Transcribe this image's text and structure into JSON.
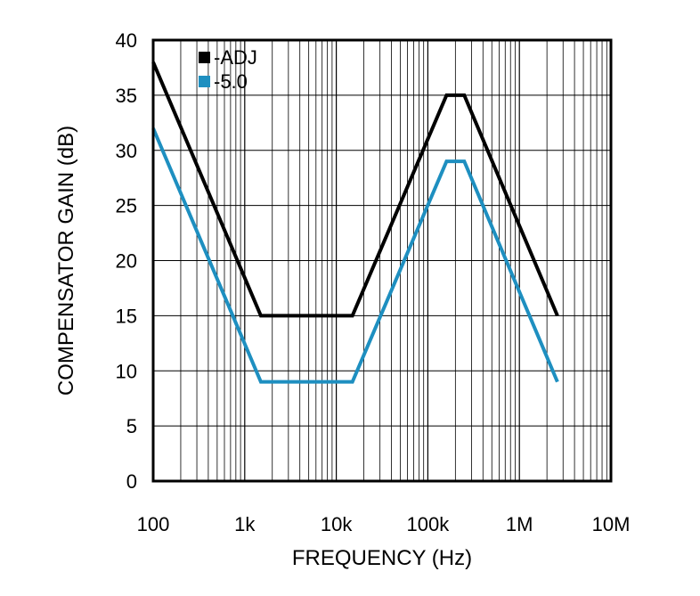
{
  "chart_data": {
    "type": "line",
    "title": "",
    "xlabel": "FREQUENCY (Hz)",
    "ylabel": "COMPENSATOR GAIN (dB)",
    "x_scale": "log",
    "xlim": [
      100,
      10000000
    ],
    "ylim": [
      0,
      40
    ],
    "x_ticks": [
      {
        "value": 100,
        "label": "100"
      },
      {
        "value": 1000,
        "label": "1k"
      },
      {
        "value": 10000,
        "label": "10k"
      },
      {
        "value": 100000,
        "label": "100k"
      },
      {
        "value": 1000000,
        "label": "1M"
      },
      {
        "value": 10000000,
        "label": "10M"
      }
    ],
    "y_ticks": [
      {
        "value": 0,
        "label": "0"
      },
      {
        "value": 5,
        "label": "5"
      },
      {
        "value": 10,
        "label": "10"
      },
      {
        "value": 15,
        "label": "15"
      },
      {
        "value": 20,
        "label": "20"
      },
      {
        "value": 25,
        "label": "25"
      },
      {
        "value": 30,
        "label": "30"
      },
      {
        "value": 35,
        "label": "35"
      },
      {
        "value": 40,
        "label": "40"
      }
    ],
    "grid": true,
    "legend_position": "top-left",
    "series": [
      {
        "name": "-ADJ",
        "color": "#000000",
        "points": [
          [
            100,
            38
          ],
          [
            1500,
            15
          ],
          [
            15000,
            15
          ],
          [
            160000,
            35
          ],
          [
            250000,
            35
          ],
          [
            2600000,
            15
          ]
        ]
      },
      {
        "name": "-5.0",
        "color": "#1e8fc0",
        "points": [
          [
            100,
            32
          ],
          [
            1500,
            9
          ],
          [
            15000,
            9
          ],
          [
            160000,
            29
          ],
          [
            250000,
            29
          ],
          [
            2600000,
            9
          ]
        ]
      }
    ]
  }
}
